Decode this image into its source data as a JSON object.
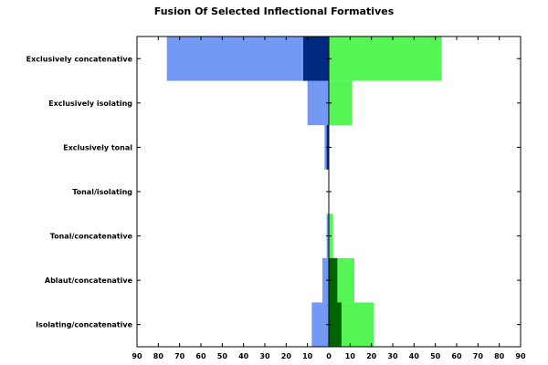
{
  "chart_data": {
    "type": "bar",
    "orientation": "horizontal-butterfly",
    "title": "Fusion Of Selected Inflectional Formatives",
    "categories": [
      "Exclusively concatenative",
      "Exclusively isolating",
      "Exclusively tonal",
      "Tonal/isolating",
      "Tonal/concatenative",
      "Ablaut/concatenative",
      "Isolating/concatenative"
    ],
    "series": [
      {
        "side": "left",
        "layer": "back",
        "color": "#7399f5",
        "values": [
          76,
          10,
          2,
          0,
          1,
          3,
          8
        ]
      },
      {
        "side": "left",
        "layer": "front",
        "color": "#002a7f",
        "values": [
          12,
          0,
          1,
          0,
          0,
          0,
          0
        ]
      },
      {
        "side": "right",
        "layer": "back",
        "color": "#55f555",
        "values": [
          53,
          11,
          0,
          0,
          2,
          12,
          21
        ]
      },
      {
        "side": "right",
        "layer": "front",
        "color": "#006400",
        "values": [
          0,
          0,
          0,
          0,
          0,
          4,
          6
        ]
      }
    ],
    "xlim": [
      -90,
      90
    ],
    "xticks": [
      -90,
      -80,
      -70,
      -60,
      -50,
      -40,
      -30,
      -20,
      -10,
      0,
      10,
      20,
      30,
      40,
      50,
      60,
      70,
      80,
      90
    ],
    "xtick_labels": [
      "90",
      "80",
      "70",
      "60",
      "50",
      "40",
      "30",
      "20",
      "10",
      "0",
      "10",
      "20",
      "30",
      "40",
      "50",
      "60",
      "70",
      "80",
      "90"
    ],
    "xlabel": "",
    "ylabel": "",
    "grid": false
  }
}
